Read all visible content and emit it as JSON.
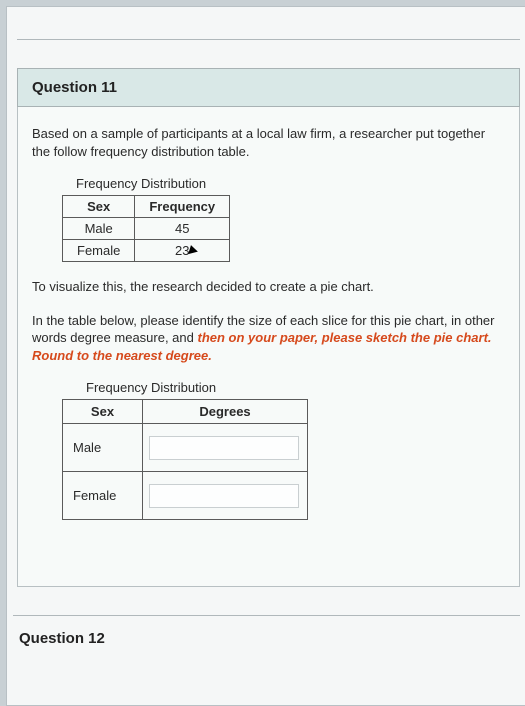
{
  "question_header": "Question 11",
  "intro": "Based on a sample of participants at a local law firm, a researcher put together the follow frequency distribution table.",
  "table1": {
    "title": "Frequency Distribution",
    "col1": "Sex",
    "col2": "Frequency",
    "rows": [
      {
        "label": "Male",
        "value": "45"
      },
      {
        "label": "Female",
        "value": "23"
      }
    ]
  },
  "mid_para": "To visualize this, the research decided to create a pie chart.",
  "instr_plain1": "In the table below, please identify the size of each slice for this pie chart, in other words degree measure, and ",
  "instr_red": "then on your paper, please sketch the pie chart. Round to the nearest degree.",
  "table2": {
    "title": "Frequency Distribution",
    "col1": "Sex",
    "col2": "Degrees",
    "rows": [
      {
        "label": "Male"
      },
      {
        "label": "Female"
      }
    ]
  },
  "next_header": "Question 12"
}
